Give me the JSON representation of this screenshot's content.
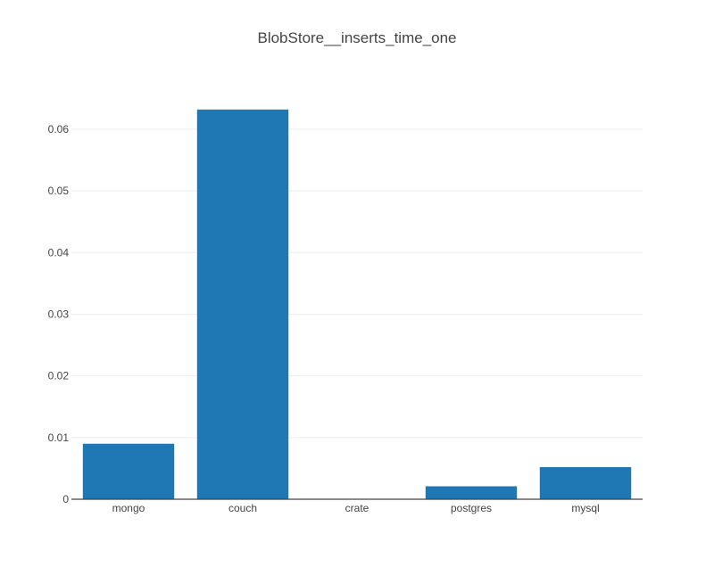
{
  "chart_data": {
    "type": "bar",
    "title": "BlobStore__inserts_time_one",
    "xlabel": "",
    "ylabel": "",
    "categories": [
      "mongo",
      "couch",
      "crate",
      "postgres",
      "mysql"
    ],
    "values": [
      0.009,
      0.0632,
      0.0,
      0.0021,
      0.0052
    ],
    "ylim": [
      0,
      0.0665
    ],
    "yticks": [
      0,
      0.01,
      0.02,
      0.03,
      0.04,
      0.05,
      0.06
    ],
    "ytick_labels": [
      "0",
      "0.01",
      "0.02",
      "0.03",
      "0.04",
      "0.05",
      "0.06"
    ],
    "grid": true,
    "legend": "none",
    "colors": {
      "bar": "#1f77b4",
      "grid": "#eeeeee",
      "axis": "#444444",
      "text": "#444444"
    }
  }
}
